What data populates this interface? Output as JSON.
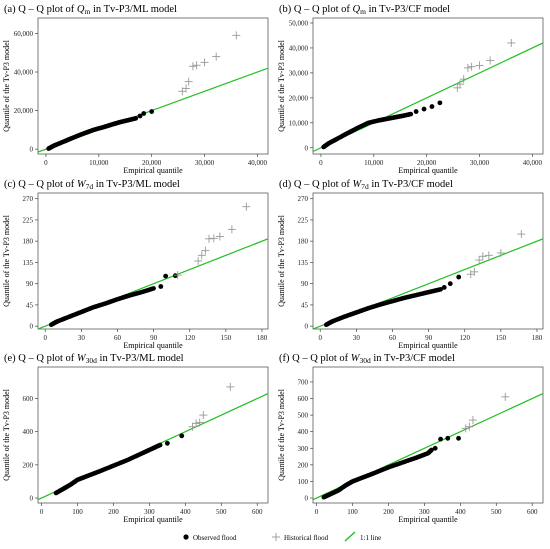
{
  "figure": {
    "legend": {
      "observed": "Observed flood",
      "historical": "Historical flood",
      "line": "1:1 line",
      "colors": {
        "line": "#1fbf1f",
        "observed": "#000000",
        "historical": "#999999"
      }
    }
  },
  "chart_data": [
    {
      "type": "scatter",
      "title_prefix": "(a) Q – Q plot of ",
      "title_var": "Q",
      "title_sub": "m",
      "title_suffix": " in Tv-P3/ML model",
      "xlabel": "Empirical quantile",
      "ylabel": "Quantile of the Tv-P3 model",
      "xlim": [
        -1500,
        42000
      ],
      "ylim": [
        -2500,
        68000
      ],
      "xticks": [
        0,
        10000,
        20000,
        30000,
        40000
      ],
      "xtick_labels": [
        "0",
        "10,000",
        "20,000",
        "30,000",
        "40,000"
      ],
      "yticks": [
        0,
        20000,
        40000,
        60000
      ],
      "ytick_labels": [
        "0",
        "20,000",
        "40,000",
        "60,000"
      ],
      "line": {
        "name": "1:1 line",
        "x": [
          -1500,
          42000
        ],
        "y": [
          -1500,
          42000
        ]
      },
      "observed_curve": {
        "x": [
          500,
          1500,
          3000,
          5000,
          7000,
          9000,
          11000,
          12500,
          14000,
          15500,
          17000
        ],
        "y": [
          300,
          1800,
          3500,
          5800,
          8000,
          10000,
          11500,
          12800,
          14000,
          15000,
          16000
        ]
      },
      "observed_extra": [
        [
          17800,
          17200
        ],
        [
          18500,
          18500
        ],
        [
          20000,
          19500
        ]
      ],
      "historical": [
        [
          25800,
          30000
        ],
        [
          26500,
          31500
        ],
        [
          27000,
          35000
        ],
        [
          27800,
          43000
        ],
        [
          28500,
          43500
        ],
        [
          30000,
          45000
        ],
        [
          32200,
          48000
        ],
        [
          36000,
          59000
        ]
      ]
    },
    {
      "type": "scatter",
      "title_prefix": "(b) Q – Q plot of ",
      "title_var": "Q",
      "title_sub": "m",
      "title_suffix": " in Tv-P3/CF model",
      "xlabel": "Empirical quantile",
      "ylabel": "Quantile of the Tv-P3 model",
      "xlim": [
        -1500,
        42000
      ],
      "ylim": [
        -2500,
        52000
      ],
      "xticks": [
        0,
        10000,
        20000,
        30000,
        40000
      ],
      "xtick_labels": [
        "0",
        "10,000",
        "20,000",
        "30,000",
        "40,000"
      ],
      "yticks": [
        0,
        10000,
        20000,
        30000,
        40000,
        50000
      ],
      "ytick_labels": [
        "0",
        "10,000",
        "20,000",
        "30,000",
        "40,000",
        "50,000"
      ],
      "line": {
        "name": "1:1 line",
        "x": [
          -1500,
          42000
        ],
        "y": [
          -1500,
          42000
        ]
      },
      "observed_curve": {
        "x": [
          500,
          1500,
          3000,
          5000,
          7000,
          9000,
          11000,
          12500,
          14000,
          15500,
          17000
        ],
        "y": [
          300,
          1800,
          3500,
          5800,
          8000,
          10000,
          11000,
          11600,
          12200,
          12800,
          13500
        ]
      },
      "observed_extra": [
        [
          18000,
          14500
        ],
        [
          19500,
          15500
        ],
        [
          21000,
          16500
        ],
        [
          22500,
          18000
        ]
      ],
      "historical": [
        [
          25800,
          24000
        ],
        [
          26300,
          25500
        ],
        [
          27000,
          27500
        ],
        [
          27800,
          32000
        ],
        [
          28500,
          32500
        ],
        [
          30000,
          33000
        ],
        [
          32000,
          35000
        ],
        [
          36000,
          42000
        ]
      ]
    },
    {
      "type": "scatter",
      "title_prefix": "(c) Q – Q plot of ",
      "title_var": "W",
      "title_sub": "7d",
      "title_suffix": " in Tv-P3/ML model",
      "xlabel": "Empirical quantile",
      "ylabel": "Quantile of the Tv-P3 model",
      "xlim": [
        -6,
        185
      ],
      "ylim": [
        -6,
        282
      ],
      "xticks": [
        0,
        30,
        60,
        90,
        120,
        150,
        180
      ],
      "xtick_labels": [
        "0",
        "30",
        "60",
        "90",
        "120",
        "150",
        "180"
      ],
      "yticks": [
        0,
        45,
        90,
        135,
        180,
        225,
        270
      ],
      "ytick_labels": [
        "0",
        "45",
        "90",
        "135",
        "180",
        "225",
        "270"
      ],
      "line": {
        "name": "1:1 line",
        "x": [
          -6,
          185
        ],
        "y": [
          -6,
          185
        ]
      },
      "observed_curve": {
        "x": [
          5,
          10,
          20,
          30,
          40,
          50,
          60,
          70,
          80,
          90
        ],
        "y": [
          3,
          10,
          20,
          30,
          40,
          48,
          57,
          65,
          72,
          80
        ]
      },
      "observed_extra": [
        [
          96,
          84
        ],
        [
          100,
          106
        ],
        [
          108,
          107
        ]
      ],
      "historical": [
        [
          110,
          108
        ],
        [
          127,
          138
        ],
        [
          130,
          150
        ],
        [
          133,
          160
        ],
        [
          136,
          185
        ],
        [
          140,
          186
        ],
        [
          145,
          190
        ],
        [
          155,
          205
        ],
        [
          167,
          253
        ]
      ]
    },
    {
      "type": "scatter",
      "title_prefix": "(d) Q – Q plot of ",
      "title_var": "W",
      "title_sub": "7d",
      "title_suffix": " in Tv-P3/CF model",
      "xlabel": "Empirical quantile",
      "ylabel": "Quantile of the Tv-P3 model",
      "xlim": [
        -6,
        185
      ],
      "ylim": [
        -6,
        282
      ],
      "xticks": [
        0,
        30,
        60,
        90,
        120,
        150,
        180
      ],
      "xtick_labels": [
        "0",
        "30",
        "60",
        "90",
        "120",
        "150",
        "180"
      ],
      "yticks": [
        0,
        45,
        90,
        135,
        180,
        225,
        270
      ],
      "ytick_labels": [
        "0",
        "45",
        "90",
        "135",
        "180",
        "225",
        "270"
      ],
      "line": {
        "name": "1:1 line",
        "x": [
          -6,
          185
        ],
        "y": [
          -6,
          185
        ]
      },
      "observed_curve": {
        "x": [
          5,
          10,
          20,
          30,
          40,
          50,
          60,
          70,
          80,
          90,
          100
        ],
        "y": [
          3,
          10,
          20,
          29,
          38,
          46,
          53,
          60,
          66,
          72,
          78
        ]
      },
      "observed_extra": [
        [
          103,
          82
        ],
        [
          108,
          90
        ],
        [
          115,
          104
        ]
      ],
      "historical": [
        [
          125,
          110
        ],
        [
          128,
          115
        ],
        [
          132,
          140
        ],
        [
          135,
          148
        ],
        [
          140,
          150
        ],
        [
          150,
          155
        ],
        [
          167,
          195
        ]
      ]
    },
    {
      "type": "scatter",
      "title_prefix": "(e) Q – Q plot of ",
      "title_var": "W",
      "title_sub": "30d",
      "title_suffix": " in Tv-P3/ML model",
      "xlabel": "Empirical quantile",
      "ylabel": "Quantile of the Tv-P3 model",
      "xlim": [
        -10,
        630
      ],
      "ylim": [
        -30,
        790
      ],
      "xticks": [
        0,
        100,
        200,
        300,
        400,
        500,
        600
      ],
      "xtick_labels": [
        "0",
        "100",
        "200",
        "300",
        "400",
        "500",
        "600"
      ],
      "yticks": [
        0,
        200,
        400,
        600
      ],
      "ytick_labels": [
        "0",
        "200",
        "400",
        "600"
      ],
      "line": {
        "name": "1:1 line",
        "x": [
          -10,
          630
        ],
        "y": [
          -10,
          630
        ]
      },
      "observed_curve": {
        "x": [
          40,
          60,
          80,
          100,
          130,
          160,
          200,
          240,
          280,
          310,
          330
        ],
        "y": [
          30,
          55,
          80,
          110,
          135,
          160,
          195,
          230,
          270,
          300,
          320
        ]
      },
      "observed_extra": [
        [
          350,
          330
        ],
        [
          390,
          375
        ]
      ],
      "historical": [
        [
          420,
          430
        ],
        [
          430,
          450
        ],
        [
          440,
          455
        ],
        [
          450,
          500
        ],
        [
          525,
          670
        ]
      ]
    },
    {
      "type": "scatter",
      "title_prefix": "(f) Q – Q plot of ",
      "title_var": "W",
      "title_sub": "30d",
      "title_suffix": " in Tv-P3/CF model",
      "xlabel": "Empirical quantile",
      "ylabel": "Quantile of the Tv-P3 model",
      "xlim": [
        -10,
        630
      ],
      "ylim": [
        -30,
        790
      ],
      "xticks": [
        0,
        100,
        200,
        300,
        400,
        500,
        600
      ],
      "xtick_labels": [
        "0",
        "100",
        "200",
        "300",
        "400",
        "500",
        "600"
      ],
      "yticks": [
        0,
        100,
        200,
        300,
        400,
        500,
        600,
        700
      ],
      "ytick_labels": [
        "0",
        "100",
        "200",
        "300",
        "400",
        "500",
        "600",
        "700"
      ],
      "line": {
        "name": "1:1 line",
        "x": [
          -10,
          630
        ],
        "y": [
          -10,
          630
        ]
      },
      "observed_curve": {
        "x": [
          20,
          40,
          60,
          80,
          100,
          130,
          160,
          200,
          240,
          280,
          310,
          320
        ],
        "y": [
          5,
          25,
          45,
          75,
          100,
          125,
          150,
          185,
          215,
          245,
          270,
          290
        ]
      },
      "observed_extra": [
        [
          330,
          300
        ],
        [
          345,
          355
        ],
        [
          365,
          360
        ],
        [
          395,
          360
        ]
      ],
      "historical": [
        [
          415,
          420
        ],
        [
          425,
          430
        ],
        [
          435,
          470
        ],
        [
          525,
          610
        ]
      ]
    }
  ]
}
